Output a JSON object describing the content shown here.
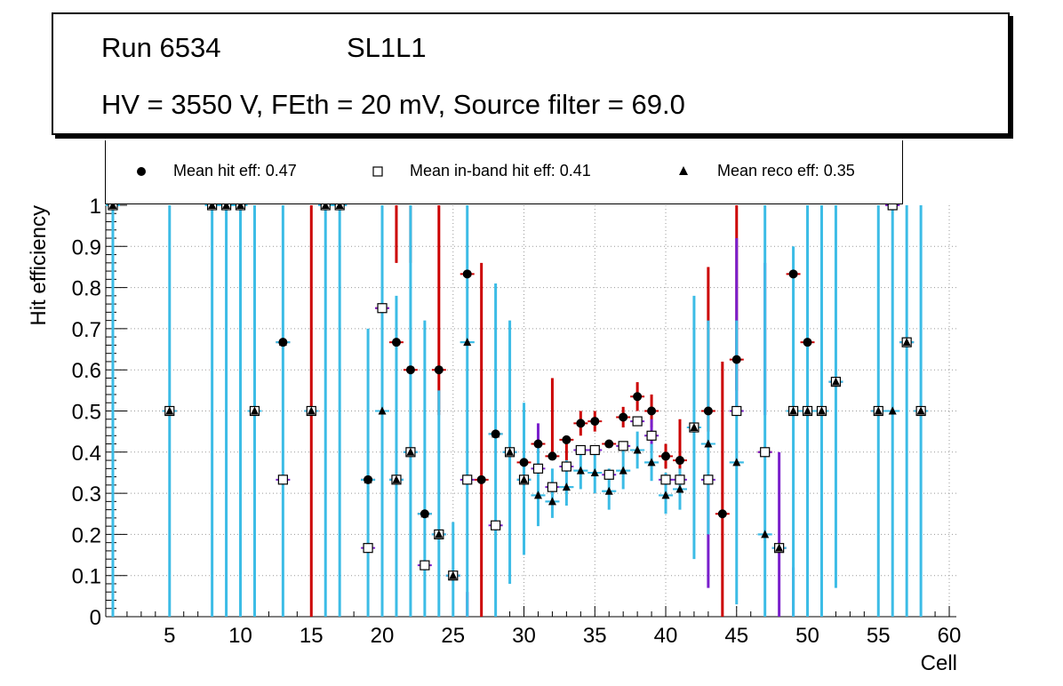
{
  "title": {
    "run_label": "Run 6534",
    "layer_label": "SL1L1",
    "conditions": "HV = 3550 V, FEth = 20 mV, Source filter = 69.0"
  },
  "legend": {
    "hit": "Mean hit  eff: 0.47",
    "inband": "Mean in-band hit eff: 0.41",
    "reco": "Mean reco eff: 0.35"
  },
  "colors": {
    "hit_error": "#cc0000",
    "inband_error": "#7a1fcc",
    "reco_error": "#3cbce6",
    "grid": "#999999"
  },
  "chart_data": {
    "type": "scatter",
    "title": "",
    "xlabel": "Cell",
    "ylabel": "Hit efficiency",
    "xlim": [
      0.5,
      60.5
    ],
    "ylim": [
      0,
      1
    ],
    "x_ticks": [
      5,
      10,
      15,
      20,
      25,
      30,
      35,
      40,
      45,
      50,
      55,
      60
    ],
    "y_ticks": [
      0,
      0.1,
      0.2,
      0.3,
      0.4,
      0.5,
      0.6,
      0.7,
      0.8,
      0.9,
      1
    ],
    "grid": true,
    "series": [
      {
        "name": "Mean hit eff",
        "marker": "filled-circle",
        "points": [
          [
            1,
            1
          ],
          [
            5,
            0.5
          ],
          [
            8,
            1
          ],
          [
            9,
            1
          ],
          [
            10,
            1
          ],
          [
            11,
            0.5
          ],
          [
            13,
            0.667
          ],
          [
            15,
            0.5
          ],
          [
            16,
            1
          ],
          [
            17,
            1
          ],
          [
            19,
            0.333
          ],
          [
            20,
            0.75
          ],
          [
            21,
            0.667
          ],
          [
            22,
            0.6
          ],
          [
            23,
            0.25
          ],
          [
            24,
            0.6
          ],
          [
            25,
            0.1
          ],
          [
            26,
            0.833
          ],
          [
            27,
            0.333
          ],
          [
            28,
            0.444
          ],
          [
            29,
            0.4
          ],
          [
            30,
            0.375
          ],
          [
            31,
            0.42
          ],
          [
            32,
            0.39
          ],
          [
            33,
            0.43
          ],
          [
            34,
            0.47
          ],
          [
            35,
            0.475
          ],
          [
            36,
            0.42
          ],
          [
            37,
            0.485
          ],
          [
            38,
            0.535
          ],
          [
            39,
            0.5
          ],
          [
            40,
            0.39
          ],
          [
            41,
            0.38
          ],
          [
            42,
            0.46
          ],
          [
            43,
            0.5
          ],
          [
            44,
            0.25
          ],
          [
            45,
            0.625
          ],
          [
            47,
            0.4
          ],
          [
            48,
            0.167
          ],
          [
            49,
            0.833
          ],
          [
            50,
            0.667
          ],
          [
            51,
            0.5
          ],
          [
            52,
            0.571
          ],
          [
            55,
            0.5
          ],
          [
            56,
            1
          ],
          [
            57,
            0.667
          ],
          [
            58,
            0.5
          ]
        ]
      },
      {
        "name": "Mean in-band hit eff",
        "marker": "open-square",
        "points": [
          [
            1,
            1
          ],
          [
            5,
            0.5
          ],
          [
            8,
            1
          ],
          [
            9,
            1
          ],
          [
            10,
            1
          ],
          [
            11,
            0.5
          ],
          [
            13,
            0.333
          ],
          [
            15,
            0.5
          ],
          [
            16,
            1
          ],
          [
            17,
            1
          ],
          [
            19,
            0.167
          ],
          [
            20,
            0.75
          ],
          [
            21,
            0.333
          ],
          [
            22,
            0.4
          ],
          [
            23,
            0.125
          ],
          [
            24,
            0.2
          ],
          [
            25,
            0.1
          ],
          [
            26,
            0.333
          ],
          [
            28,
            0.222
          ],
          [
            29,
            0.4
          ],
          [
            30,
            0.333
          ],
          [
            31,
            0.36
          ],
          [
            32,
            0.315
          ],
          [
            33,
            0.365
          ],
          [
            34,
            0.405
          ],
          [
            35,
            0.405
          ],
          [
            36,
            0.345
          ],
          [
            37,
            0.415
          ],
          [
            38,
            0.475
          ],
          [
            39,
            0.44
          ],
          [
            40,
            0.333
          ],
          [
            41,
            0.333
          ],
          [
            42,
            0.46
          ],
          [
            43,
            0.333
          ],
          [
            45,
            0.5
          ],
          [
            47,
            0.4
          ],
          [
            48,
            0.167
          ],
          [
            49,
            0.5
          ],
          [
            50,
            0.5
          ],
          [
            51,
            0.5
          ],
          [
            52,
            0.571
          ],
          [
            55,
            0.5
          ],
          [
            56,
            1
          ],
          [
            57,
            0.667
          ],
          [
            58,
            0.5
          ]
        ]
      },
      {
        "name": "Mean reco eff",
        "marker": "filled-triangle",
        "points": [
          [
            1,
            1
          ],
          [
            5,
            0.5
          ],
          [
            8,
            1
          ],
          [
            9,
            1
          ],
          [
            10,
            1
          ],
          [
            11,
            0.5
          ],
          [
            13,
            0.667
          ],
          [
            15,
            0.5
          ],
          [
            16,
            1
          ],
          [
            17,
            1
          ],
          [
            19,
            0.333
          ],
          [
            20,
            0.5
          ],
          [
            21,
            0.333
          ],
          [
            22,
            0.4
          ],
          [
            23,
            0.25
          ],
          [
            24,
            0.2
          ],
          [
            25,
            0.1
          ],
          [
            26,
            0.667
          ],
          [
            28,
            0.444
          ],
          [
            29,
            0.4
          ],
          [
            30,
            0.333
          ],
          [
            31,
            0.295
          ],
          [
            32,
            0.28
          ],
          [
            33,
            0.315
          ],
          [
            34,
            0.355
          ],
          [
            35,
            0.35
          ],
          [
            36,
            0.305
          ],
          [
            37,
            0.355
          ],
          [
            38,
            0.405
          ],
          [
            39,
            0.375
          ],
          [
            40,
            0.295
          ],
          [
            41,
            0.31
          ],
          [
            42,
            0.46
          ],
          [
            43,
            0.42
          ],
          [
            45,
            0.375
          ],
          [
            47,
            0.2
          ],
          [
            48,
            0.167
          ],
          [
            49,
            0.5
          ],
          [
            50,
            0.5
          ],
          [
            51,
            0.5
          ],
          [
            52,
            0.571
          ],
          [
            55,
            0.5
          ],
          [
            56,
            0.5
          ],
          [
            57,
            0.667
          ],
          [
            58,
            0.5
          ]
        ]
      }
    ],
    "error_bars": {
      "hit": [
        [
          15,
          0,
          1
        ],
        [
          21,
          0.86,
          1
        ],
        [
          22,
          0.86,
          1
        ],
        [
          24,
          0.49,
          1
        ],
        [
          27,
          0,
          0.86
        ],
        [
          32,
          0.38,
          0.58
        ],
        [
          33,
          0.38,
          0.44
        ],
        [
          34,
          0.44,
          0.5
        ],
        [
          35,
          0.45,
          0.5
        ],
        [
          37,
          0.46,
          0.51
        ],
        [
          38,
          0.5,
          0.57
        ],
        [
          39,
          0.46,
          0.54
        ],
        [
          40,
          0.36,
          0.42
        ],
        [
          41,
          0.35,
          0.48
        ],
        [
          43,
          0.45,
          0.85
        ],
        [
          44,
          0,
          0.62
        ],
        [
          45,
          0.55,
          1
        ]
      ],
      "inband": [
        [
          26,
          0,
          0.06
        ],
        [
          31,
          0.35,
          0.47
        ],
        [
          39,
          0.4,
          0.48
        ],
        [
          43,
          0.07,
          0.33
        ],
        [
          45,
          0.5,
          0.92
        ],
        [
          47,
          0.49,
          0.86
        ],
        [
          48,
          0,
          0.4
        ],
        [
          49,
          0,
          0.12
        ]
      ],
      "reco": [
        [
          1,
          0,
          1
        ],
        [
          5,
          0,
          1
        ],
        [
          8,
          0,
          1
        ],
        [
          9,
          0,
          1
        ],
        [
          10,
          0,
          1
        ],
        [
          11,
          0,
          1
        ],
        [
          13,
          0,
          1
        ],
        [
          16,
          0,
          1
        ],
        [
          17,
          0,
          1
        ],
        [
          19,
          0,
          0.7
        ],
        [
          20,
          0,
          1
        ],
        [
          21,
          0,
          0.78
        ],
        [
          22,
          0,
          1
        ],
        [
          23,
          0,
          0.72
        ],
        [
          24,
          0,
          0.55
        ],
        [
          25,
          0,
          0.23
        ],
        [
          26,
          0,
          1
        ],
        [
          28,
          0,
          0.81
        ],
        [
          29,
          0.08,
          0.72
        ],
        [
          30,
          0.15,
          0.52
        ],
        [
          31,
          0.22,
          0.41
        ],
        [
          32,
          0.24,
          0.36
        ],
        [
          33,
          0.27,
          0.38
        ],
        [
          34,
          0.31,
          0.41
        ],
        [
          35,
          0.3,
          0.4
        ],
        [
          36,
          0.26,
          0.36
        ],
        [
          37,
          0.31,
          0.41
        ],
        [
          38,
          0.36,
          0.45
        ],
        [
          39,
          0.33,
          0.42
        ],
        [
          40,
          0.25,
          0.35
        ],
        [
          41,
          0.26,
          0.36
        ],
        [
          42,
          0.14,
          0.78
        ],
        [
          43,
          0.2,
          0.72
        ],
        [
          45,
          0.03,
          0.72
        ],
        [
          47,
          0,
          1
        ],
        [
          49,
          0,
          0.9
        ],
        [
          50,
          0,
          1
        ],
        [
          51,
          0,
          1
        ],
        [
          52,
          0.07,
          1
        ],
        [
          55,
          0,
          1
        ],
        [
          56,
          0,
          1
        ],
        [
          57,
          0,
          1
        ],
        [
          58,
          0,
          1
        ]
      ]
    }
  }
}
